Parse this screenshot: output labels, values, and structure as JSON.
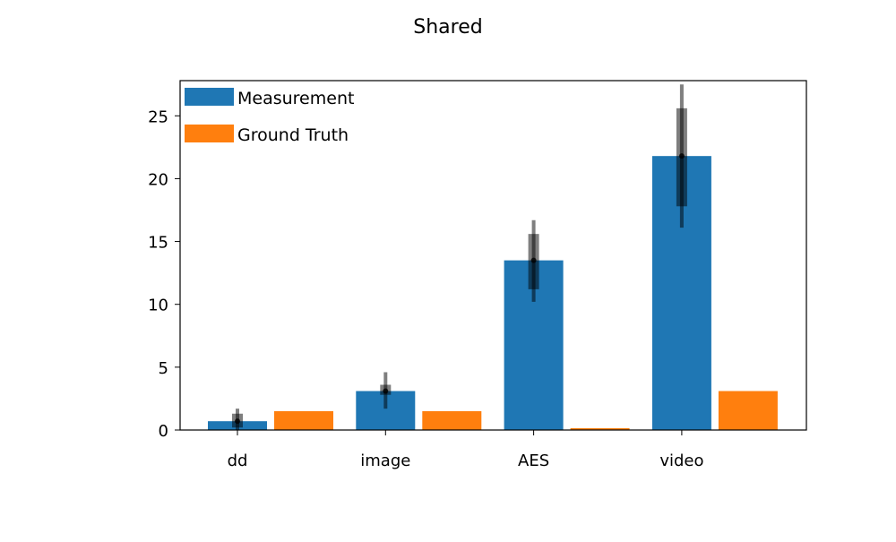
{
  "chart_data": {
    "type": "bar",
    "title": "Shared",
    "xlabel": "",
    "ylabel": "",
    "categories": [
      "dd",
      "image",
      "AES",
      "video"
    ],
    "ylim": [
      0,
      27.8
    ],
    "yticks": [
      0,
      5,
      10,
      15,
      20,
      25
    ],
    "grid": false,
    "legend_position": "top-left",
    "series": [
      {
        "name": "Measurement",
        "color": "#1f77b4",
        "values": [
          0.7,
          3.1,
          13.5,
          21.8
        ],
        "error_ranges": [
          {
            "whisker": [
              0.0,
              1.7
            ],
            "box": [
              0.2,
              1.3
            ]
          },
          {
            "whisker": [
              1.7,
              4.6
            ],
            "box": [
              2.8,
              3.6
            ]
          },
          {
            "whisker": [
              10.2,
              16.7
            ],
            "box": [
              11.2,
              15.6
            ]
          },
          {
            "whisker": [
              16.1,
              27.5
            ],
            "box": [
              17.8,
              25.6
            ]
          }
        ]
      },
      {
        "name": "Ground Truth",
        "color": "#ff7f0e",
        "values": [
          1.5,
          1.5,
          0.15,
          3.1
        ]
      }
    ]
  }
}
